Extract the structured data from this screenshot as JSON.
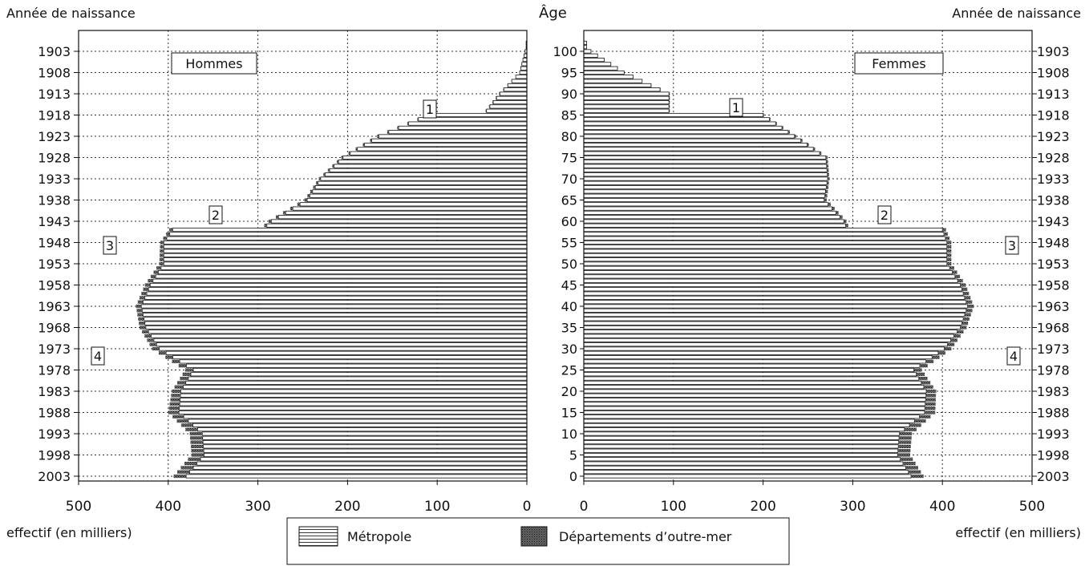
{
  "header": {
    "left_axis_title": "Année de naissance",
    "center_axis_title": "Âge",
    "right_axis_title": "Année de naissance"
  },
  "footer": {
    "left_xlabel": "effectif (en milliers)",
    "right_xlabel": "effectif (en milliers)"
  },
  "legend": {
    "metropole": "Métropole",
    "dom": "Départements d’outre-mer"
  },
  "colors": {
    "metropole_fill": "#ffffff",
    "dom_fill": "#555555",
    "line": "#111111"
  },
  "chart_data": {
    "type": "bar",
    "orientation": "horizontal-population-pyramid",
    "panels": [
      {
        "name": "Hommes",
        "xlim": [
          500,
          0
        ],
        "x_ticks": [
          500,
          400,
          300,
          200,
          100,
          0
        ]
      },
      {
        "name": "Femmes",
        "xlim": [
          0,
          500
        ],
        "x_ticks": [
          0,
          100,
          200,
          300,
          400,
          500
        ]
      }
    ],
    "age_ticks": [
      0,
      5,
      10,
      15,
      20,
      25,
      30,
      35,
      40,
      45,
      50,
      55,
      60,
      65,
      70,
      75,
      80,
      85,
      90,
      95,
      100
    ],
    "birth_year_ticks": [
      "2003",
      "1998",
      "1993",
      "1988",
      "1983",
      "1978",
      "1973",
      "1968",
      "1963",
      "1958",
      "1953",
      "1948",
      "1943",
      "1938",
      "1933",
      "1928",
      "1923",
      "1918",
      "1913",
      "1908",
      "1903"
    ],
    "annotations": [
      {
        "label": "1",
        "age": 86
      },
      {
        "label": "2",
        "age": 62
      },
      {
        "label": "3",
        "age": 56
      },
      {
        "label": "4",
        "age": 30
      }
    ],
    "series": [
      {
        "name": "Métropole",
        "x": [
          0,
          5,
          10,
          15,
          20,
          25,
          30,
          35,
          40,
          45,
          50,
          55,
          58,
          59,
          60,
          65,
          70,
          75,
          80,
          85,
          86,
          90,
          95,
          100
        ],
        "hommes": [
          380,
          360,
          362,
          388,
          386,
          372,
          410,
          425,
          430,
          420,
          405,
          405,
          395,
          290,
          285,
          245,
          230,
          205,
          165,
          110,
          45,
          30,
          8,
          2
        ],
        "femmes": [
          365,
          350,
          352,
          380,
          382,
          368,
          402,
          420,
          428,
          420,
          405,
          405,
          400,
          292,
          290,
          268,
          272,
          270,
          235,
          200,
          95,
          95,
          45,
          8
        ]
      },
      {
        "name": "Départements d’outre-mer",
        "x": [
          0,
          5,
          10,
          15,
          20,
          25,
          30,
          35,
          40,
          45,
          50,
          55,
          58,
          59,
          60,
          65,
          70,
          75,
          80,
          85,
          86,
          90,
          95,
          100
        ],
        "hommes": [
          14,
          14,
          14,
          12,
          10,
          9,
          8,
          7,
          6,
          6,
          5,
          4,
          4,
          3,
          3,
          3,
          2,
          2,
          2,
          1,
          1,
          1,
          0,
          0
        ],
        "femmes": [
          14,
          14,
          14,
          12,
          11,
          9,
          8,
          7,
          7,
          6,
          5,
          5,
          4,
          3,
          3,
          3,
          2,
          2,
          2,
          1,
          1,
          1,
          0,
          0
        ]
      }
    ]
  }
}
